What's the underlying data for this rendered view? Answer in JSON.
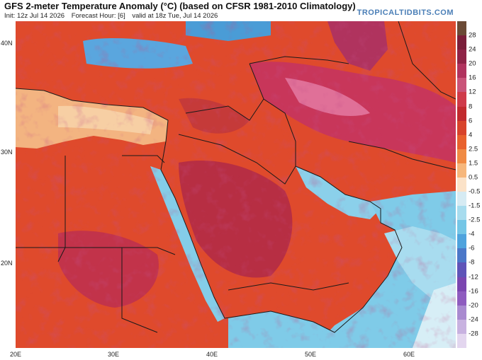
{
  "header": {
    "title": "GFS 2-meter Temperature Anomaly (°C) (based on CFSR 1981-2010 Climatology)",
    "init": "Init: 12z Jul 14 2026",
    "forecast_hour": "Forecast Hour: [6]",
    "valid": "valid at 18z Tue, Jul 14 2026",
    "brand": "TROPICALTIDBITS.COM"
  },
  "axes": {
    "lat_labels": [
      "40N",
      "30N",
      "20N"
    ],
    "lon_labels": [
      "20E",
      "30E",
      "40E",
      "50E",
      "60E"
    ]
  },
  "colorbar": {
    "labels": [
      "28",
      "24",
      "20",
      "16",
      "12",
      "8",
      "6",
      "4",
      "2.5",
      "1.5",
      "0.5",
      "-0.5",
      "-1.5",
      "-2.5",
      "-4",
      "-6",
      "-8",
      "-12",
      "-16",
      "-20",
      "-24",
      "-28"
    ],
    "colors": [
      "#6b4a36",
      "#7a1f3a",
      "#8e2346",
      "#b0335e",
      "#c95479",
      "#cf3a4a",
      "#c12a2e",
      "#d8432b",
      "#e8612d",
      "#f08a43",
      "#f6b77c",
      "#fbe2c8",
      "#d6ebf3",
      "#a7dcee",
      "#74c6e6",
      "#4fa3dd",
      "#4b77c8",
      "#5f54b8",
      "#7b46b0",
      "#8e5bbf",
      "#a98ad0",
      "#c8b2e0",
      "#e3d6ef"
    ]
  },
  "map": {
    "ocean_color": "#7fcbe8",
    "border_color": "#1a1a1a"
  }
}
